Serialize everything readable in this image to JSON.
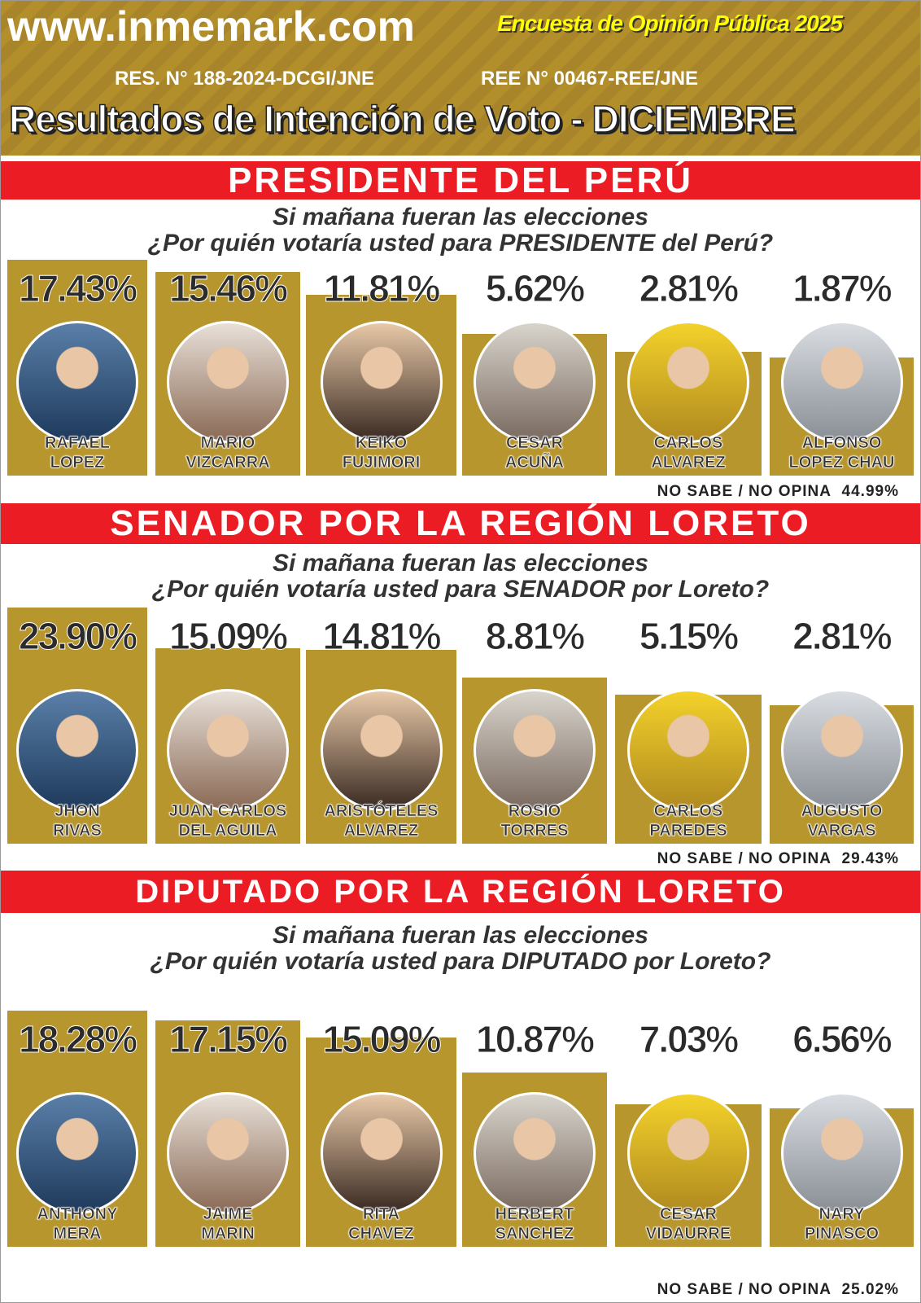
{
  "header": {
    "site": "www.inmemark.com",
    "survey": "Encuesta de Opinión Pública 2025",
    "res1": "RES. N° 188-2024-DCGI/JNE",
    "res2": "REE N° 00467-REE/JNE",
    "title": "Resultados de Intención de Voto - DICIEMBRE"
  },
  "colors": {
    "bar": "#b8962e",
    "banner": "#ec1c24",
    "survey_text": "#ffff00"
  },
  "chart_data": [
    {
      "type": "bar",
      "title": "PRESIDENTE DEL PERÚ",
      "question1": "Si mañana fueran las elecciones",
      "question2": "¿Por quién votaría usted para PRESIDENTE del Perú?",
      "categories": [
        "RAFAEL LOPEZ",
        "MARIO VIZCARRA",
        "KEIKO FUJIMORI",
        "CESAR ACUÑA",
        "CARLOS ALVAREZ",
        "ALFONSO LOPEZ CHAU"
      ],
      "names": [
        [
          "RAFAEL",
          "LOPEZ"
        ],
        [
          "MARIO",
          "VIZCARRA"
        ],
        [
          "KEIKO",
          "FUJIMORI"
        ],
        [
          "CESAR",
          "ACUÑA"
        ],
        [
          "CARLOS",
          "ALVAREZ"
        ],
        [
          "ALFONSO",
          "LOPEZ CHAU"
        ]
      ],
      "values": [
        17.43,
        15.46,
        11.81,
        5.62,
        2.81,
        1.87
      ],
      "labels": [
        "17.43%",
        "15.46%",
        "11.81%",
        "5.62%",
        "2.81%",
        "1.87%"
      ],
      "no_sabe_label": "NO SABE / NO OPINA",
      "no_sabe_value": "44.99%"
    },
    {
      "type": "bar",
      "title": "SENADOR POR LA REGIÓN LORETO",
      "question1": "Si mañana fueran las elecciones",
      "question2": "¿Por quién votaría usted para SENADOR por Loreto?",
      "categories": [
        "JHON RIVAS",
        "JUAN CARLOS DEL AGUILA",
        "ARISTÓTELES ALVAREZ",
        "ROSIO TORRES",
        "CARLOS PAREDES",
        "AUGUSTO VARGAS"
      ],
      "names": [
        [
          "JHON",
          "RIVAS"
        ],
        [
          "JUAN CARLOS",
          "DEL AGUILA"
        ],
        [
          "ARISTÓTELES",
          "ALVAREZ"
        ],
        [
          "ROSIO",
          "TORRES"
        ],
        [
          "CARLOS",
          "PAREDES"
        ],
        [
          "AUGUSTO",
          "VARGAS"
        ]
      ],
      "values": [
        23.9,
        15.09,
        14.81,
        8.81,
        5.15,
        2.81
      ],
      "labels": [
        "23.90%",
        "15.09%",
        "14.81%",
        "8.81%",
        "5.15%",
        "2.81%"
      ],
      "no_sabe_label": "NO SABE / NO OPINA",
      "no_sabe_value": "29.43%"
    },
    {
      "type": "bar",
      "title": "DIPUTADO POR LA REGIÓN LORETO",
      "question1": "Si mañana fueran las elecciones",
      "question2": "¿Por quién votaría usted para DIPUTADO por Loreto?",
      "categories": [
        "ANTHONY MERA",
        "JAIME MARIN",
        "RITA CHAVEZ",
        "HERBERT SANCHEZ",
        "CESAR VIDAURRE",
        "NARY PINASCO"
      ],
      "names": [
        [
          "ANTHONY",
          "MERA"
        ],
        [
          "JAIME",
          "MARIN"
        ],
        [
          "RITA",
          "CHAVEZ"
        ],
        [
          "HERBERT",
          "SANCHEZ"
        ],
        [
          "CESAR",
          "VIDAURRE"
        ],
        [
          "NARY",
          "PINASCO"
        ]
      ],
      "values": [
        18.28,
        17.15,
        15.09,
        10.87,
        7.03,
        6.56
      ],
      "labels": [
        "18.28%",
        "17.15%",
        "15.09%",
        "10.87%",
        "7.03%",
        "6.56%"
      ],
      "no_sabe_label": "NO SABE / NO OPINA",
      "no_sabe_value": "25.02%"
    }
  ]
}
